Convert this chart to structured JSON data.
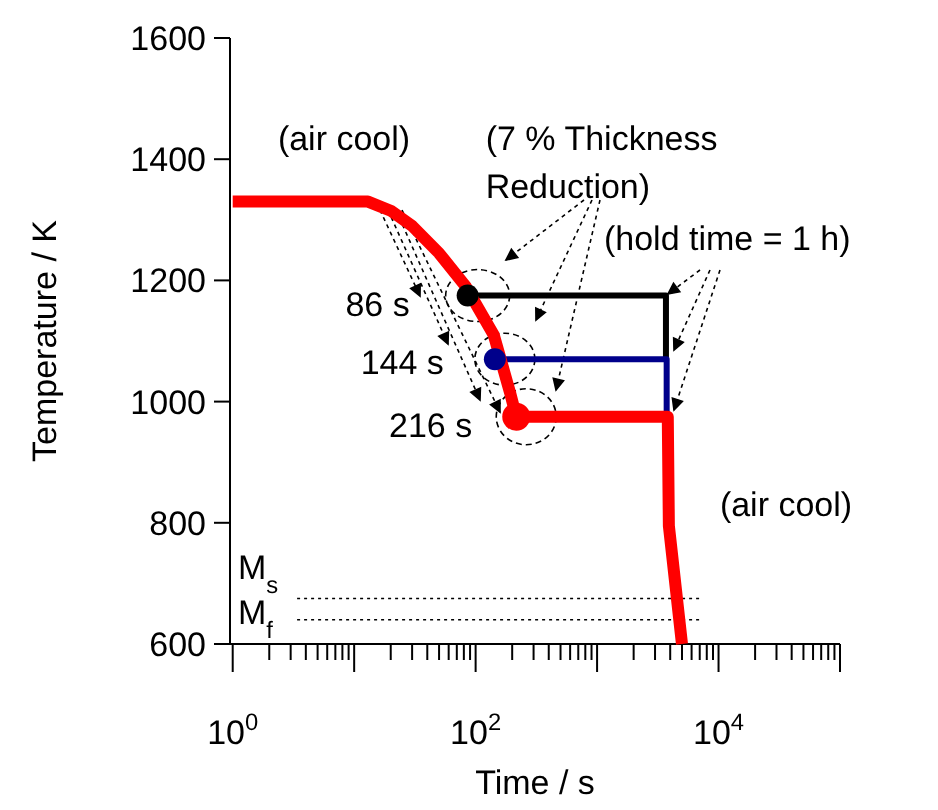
{
  "chart_data": {
    "type": "line",
    "xlabel": "Time / s",
    "ylabel": "Temperature / K",
    "log": "x",
    "xlim": [
      0.95,
      100000
    ],
    "ylim": [
      600,
      1600
    ],
    "xticks": [
      {
        "value": 1,
        "label": "10$^{0}$"
      },
      {
        "value": 2,
        "label": null
      },
      {
        "value": 3,
        "label": null
      },
      {
        "value": 4,
        "label": null
      },
      {
        "value": 5,
        "label": null
      },
      {
        "value": 6,
        "label": null
      },
      {
        "value": 7,
        "label": null
      },
      {
        "value": 8,
        "label": null
      },
      {
        "value": 9,
        "label": null
      },
      {
        "value": 10,
        "label": null
      },
      {
        "value": 20,
        "label": null
      },
      {
        "value": 30,
        "label": null
      },
      {
        "value": 40,
        "label": null
      },
      {
        "value": 50,
        "label": null
      },
      {
        "value": 60,
        "label": null
      },
      {
        "value": 70,
        "label": null
      },
      {
        "value": 80,
        "label": null
      },
      {
        "value": 90,
        "label": null
      },
      {
        "value": 100,
        "label": "10$^{2}$"
      },
      {
        "value": 200,
        "label": null
      },
      {
        "value": 300,
        "label": null
      },
      {
        "value": 400,
        "label": null
      },
      {
        "value": 500,
        "label": null
      },
      {
        "value": 600,
        "label": null
      },
      {
        "value": 700,
        "label": null
      },
      {
        "value": 800,
        "label": null
      },
      {
        "value": 900,
        "label": null
      },
      {
        "value": 1000,
        "label": null
      },
      {
        "value": 2000,
        "label": null
      },
      {
        "value": 3000,
        "label": null
      },
      {
        "value": 4000,
        "label": null
      },
      {
        "value": 5000,
        "label": null
      },
      {
        "value": 6000,
        "label": null
      },
      {
        "value": 7000,
        "label": null
      },
      {
        "value": 8000,
        "label": null
      },
      {
        "value": 9000,
        "label": null
      },
      {
        "value": 10000,
        "label": "10$^{4}$"
      },
      {
        "value": 20000,
        "label": null
      },
      {
        "value": 30000,
        "label": null
      },
      {
        "value": 40000,
        "label": null
      },
      {
        "value": 50000,
        "label": null
      },
      {
        "value": 60000,
        "label": null
      },
      {
        "value": 70000,
        "label": null
      },
      {
        "value": 80000,
        "label": null
      },
      {
        "value": 90000,
        "label": null
      },
      {
        "value": 100000,
        "label": null
      }
    ],
    "yticks": [
      600,
      800,
      1000,
      1200,
      1400,
      1600
    ],
    "grid": false,
    "series": [
      {
        "color": "#000000",
        "x": [
          86,
          3690,
          3690
        ],
        "values": [
          1175,
          1175,
          1070
        ]
      },
      {
        "color": "#00008b",
        "x": [
          144,
          3740,
          3740
        ],
        "values": [
          1070,
          1070,
          975
        ]
      },
      {
        "color": "#ff0000",
        "x": [
          1,
          13,
          20,
          30,
          50,
          83,
          141,
          192,
          216,
          3820,
          3900,
          5000
        ],
        "values": [
          1330,
          1330,
          1315,
          1290,
          1245,
          1190,
          1110,
          1015,
          975,
          975,
          795,
          600
        ]
      },
      {
        "type": "scatter",
        "color": "#000000",
        "x": [
          86
        ],
        "values": [
          1175
        ]
      },
      {
        "type": "scatter",
        "color": "#00008b",
        "x": [
          144
        ],
        "values": [
          1070
        ]
      },
      {
        "type": "scatter",
        "color": "#ff0000",
        "x": [
          216
        ],
        "values": [
          975
        ]
      }
    ],
    "ref_lines": [
      {
        "axis": "y",
        "value": 675,
        "label": "M$_{s}$",
        "line_style": "dotted",
        "color": "#000000"
      },
      {
        "axis": "y",
        "value": 640,
        "label": "M$_{f}$",
        "line_style": "dotted",
        "color": "#000000"
      }
    ],
    "annotations": [
      "(air cool)",
      {
        "text": "(7 % Thickness\nReduction)",
        "x": 86,
        "y": 1175
      },
      {
        "text": "(hold time = 1 h)",
        "x": 3690,
        "y": 1175
      },
      {
        "text": "86 s",
        "x": 86,
        "y": 1175
      },
      {
        "text": "144 s",
        "x": 144,
        "y": 1070
      },
      {
        "text": "216 s",
        "x": 216,
        "y": 975
      },
      "(air cool)"
    ]
  }
}
